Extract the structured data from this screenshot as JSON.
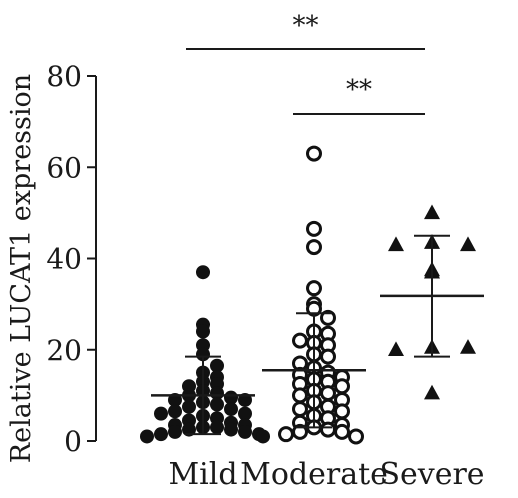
{
  "chart_data": {
    "type": "scatter",
    "ylabel": "Relative LUCAT1 expression",
    "ylim": [
      0,
      80
    ],
    "yticks": [
      0,
      20,
      40,
      60,
      80
    ],
    "categories": [
      "Mild",
      "Moderate",
      "Severe"
    ],
    "grid": false,
    "series": [
      {
        "category": "Mild",
        "marker": "filled-circle",
        "mean": 10,
        "sd_upper": 18.5,
        "sd_lower": 1.5,
        "values": [
          37,
          25.5,
          24,
          21,
          19,
          16.5,
          15,
          14,
          13,
          12.5,
          12,
          11,
          10.5,
          10,
          9.5,
          9,
          9,
          8.5,
          8,
          7.5,
          7,
          6.5,
          6,
          6,
          5.5,
          5,
          4.5,
          4,
          3.5,
          3.5,
          3,
          3,
          2.5,
          2.5,
          2,
          2,
          1.5,
          1.5,
          1,
          1
        ]
      },
      {
        "category": "Moderate",
        "marker": "open-circle",
        "mean": 15.5,
        "sd_upper": 28,
        "sd_lower": 3,
        "values": [
          63,
          46.5,
          42.5,
          33.5,
          30,
          29,
          27,
          24,
          23.5,
          22,
          21.5,
          21,
          19,
          18.5,
          17,
          16,
          15,
          14.5,
          14,
          13.5,
          13,
          12.5,
          12,
          11,
          10.5,
          10,
          9,
          8.5,
          7.5,
          7,
          6.5,
          5.5,
          5,
          4,
          3.5,
          3,
          2.5,
          2,
          2,
          1.5,
          1
        ]
      },
      {
        "category": "Severe",
        "marker": "filled-triangle",
        "mean": 31.8,
        "sd_upper": 45,
        "sd_lower": 18.5,
        "values": [
          50,
          43.5,
          43,
          43,
          37.5,
          37,
          20.5,
          20.5,
          20,
          10.5
        ]
      }
    ],
    "annotations": [
      {
        "text": "**",
        "from": "Mild",
        "to": "Severe"
      },
      {
        "text": "**",
        "from": "Moderate",
        "to": "Severe"
      }
    ]
  }
}
